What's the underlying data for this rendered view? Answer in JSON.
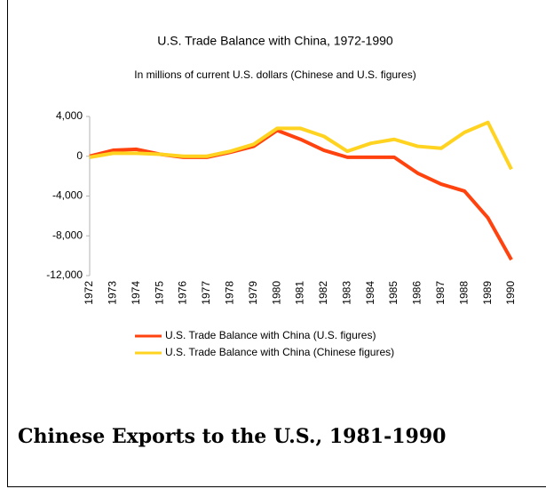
{
  "chart_data": {
    "type": "line",
    "title": "U.S. Trade Balance with China, 1972-1990",
    "subtitle": "In millions of current U.S. dollars (Chinese and U.S. figures)",
    "categories": [
      "1972",
      "1973",
      "1974",
      "1975",
      "1976",
      "1977",
      "1978",
      "1979",
      "1980",
      "1981",
      "1982",
      "1983",
      "1984",
      "1985",
      "1986",
      "1987",
      "1988",
      "1989",
      "1990"
    ],
    "series": [
      {
        "name": "U.S. Trade Balance with China (U.S. figures)",
        "color": "#ff420e",
        "values": [
          0,
          600,
          700,
          200,
          -100,
          -100,
          400,
          1000,
          2600,
          1700,
          600,
          -100,
          -100,
          -100,
          -1700,
          -2800,
          -3500,
          -6200,
          -10400
        ]
      },
      {
        "name": "U.S. Trade Balance with China (Chinese figures)",
        "color": "#ffd320",
        "values": [
          -100,
          300,
          300,
          200,
          0,
          0,
          500,
          1200,
          2800,
          2800,
          2000,
          500,
          1300,
          1700,
          1000,
          800,
          2400,
          3400,
          -1300
        ]
      }
    ],
    "ylim": [
      -12000,
      4000
    ],
    "yticks": [
      {
        "value": 4000,
        "label": "4,000"
      },
      0,
      {
        "value": -4000,
        "label": "-4,000"
      },
      {
        "value": -8000,
        "label": "-8,000"
      },
      {
        "value": -12000,
        "label": "-12,000"
      }
    ],
    "grid": false,
    "legend": "bottom"
  },
  "heading": "Chinese Exports to the U.S., 1981-1990"
}
